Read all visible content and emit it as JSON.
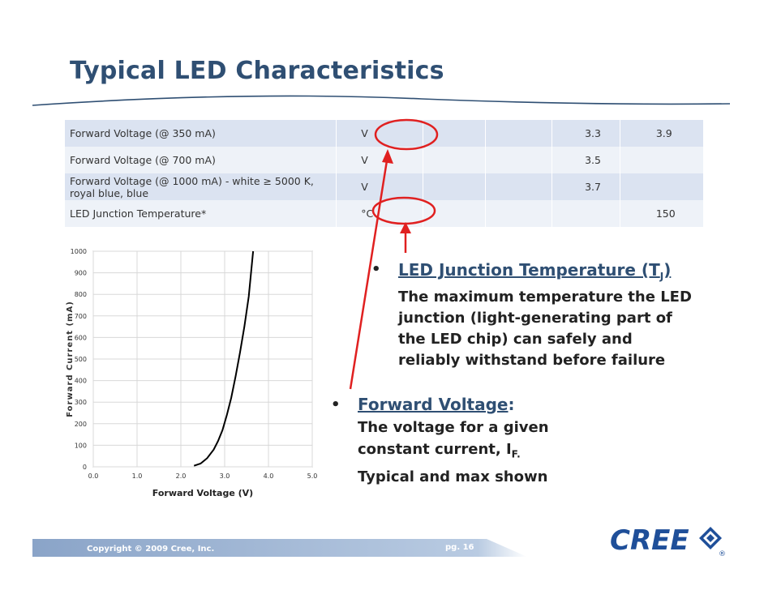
{
  "title": "Typical LED Characteristics",
  "table": {
    "rows": [
      {
        "param": "Forward Voltage (@ 350 mA)",
        "unit": "V",
        "min": "",
        "typ": "3.3",
        "max": "3.9"
      },
      {
        "param": "Forward Voltage (@ 700 mA)",
        "unit": "V",
        "min": "",
        "typ": "3.5",
        "max": ""
      },
      {
        "param": "Forward Voltage (@ 1000 mA) - white ≥ 5000 K, royal blue, blue",
        "unit": "V",
        "min": "",
        "typ": "3.7",
        "max": ""
      },
      {
        "param": "LED Junction Temperature*",
        "unit": "°C",
        "min": "",
        "typ": "",
        "max": "150"
      }
    ]
  },
  "chart_data": {
    "type": "line",
    "xlabel": "Forward Voltage (V)",
    "ylabel": "Forward Current (mA)",
    "xlim": [
      0,
      5
    ],
    "ylim": [
      0,
      1000
    ],
    "xticks": [
      "0.0",
      "1.0",
      "2.0",
      "3.0",
      "4.0",
      "5.0"
    ],
    "yticks": [
      "0",
      "100",
      "200",
      "300",
      "400",
      "500",
      "600",
      "700",
      "800",
      "900",
      "1000"
    ],
    "grid": true,
    "series": [
      {
        "x": [
          2.3,
          2.45,
          2.6,
          2.75,
          2.85,
          2.95,
          3.05,
          3.15,
          3.25,
          3.35,
          3.45,
          3.55,
          3.65
        ],
        "values": [
          5,
          15,
          40,
          80,
          120,
          170,
          240,
          320,
          420,
          530,
          650,
          790,
          1000
        ]
      }
    ]
  },
  "bullets": {
    "tj": {
      "heading": "LED Junction Temperature (T",
      "sub": "J",
      "close": ")",
      "lines": [
        "The maximum temperature the LED",
        "junction (light-generating part of",
        "the LED chip) can safely and",
        "reliably withstand before failure"
      ]
    },
    "vf": {
      "heading": "Forward Voltage",
      "colon": ":",
      "lines": [
        "The voltage for a given",
        "constant current, I",
        "Typical and max shown"
      ],
      "sub": "F."
    },
    "dot": "•"
  },
  "footer": {
    "copyright": "Copyright © 2009 Cree, Inc.",
    "page": "pg. 16"
  },
  "logo": {
    "text": "CREE",
    "reg": "®"
  },
  "colors": {
    "title": "#2f4f73",
    "highlight": "#e02020",
    "footer": "#8aa4c8",
    "logo": "#1f4f99"
  }
}
